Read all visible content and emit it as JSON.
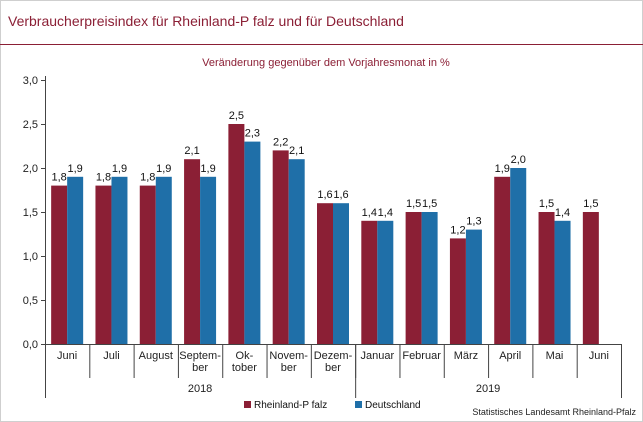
{
  "header": {
    "title": "Verbraucherpreisindex für Rheinland-P falz und für Deutschland"
  },
  "source": "Statistisches Landesamt Rheinland-Pfalz",
  "colors": {
    "rlp": "#8b1f35",
    "de": "#1f6fa8",
    "accent": "#8b1f35"
  },
  "chart_data": {
    "type": "bar",
    "subtitle": "Veränderung gegenüber dem Vorjahresmonat in %",
    "ylim": [
      0,
      3.0
    ],
    "yticks": [
      "0,0",
      "0,5",
      "1,0",
      "1,5",
      "2,0",
      "2,5",
      "3,0"
    ],
    "yticks_values": [
      0,
      0.5,
      1.0,
      1.5,
      2.0,
      2.5,
      3.0
    ],
    "categories": [
      [
        "Juni"
      ],
      [
        "Juli"
      ],
      [
        "August"
      ],
      [
        "Septem-",
        "ber"
      ],
      [
        "Ok-",
        "tober"
      ],
      [
        "Novem-",
        "ber"
      ],
      [
        "Dezem-",
        "ber"
      ],
      [
        "Januar"
      ],
      [
        "Februar"
      ],
      [
        "März"
      ],
      [
        "April"
      ],
      [
        "Mai"
      ],
      [
        "Juni"
      ]
    ],
    "years": [
      {
        "label": "2018",
        "from": 0,
        "to": 6
      },
      {
        "label": "2019",
        "from": 7,
        "to": 12
      }
    ],
    "series": [
      {
        "name": "Rheinland-Pfalz",
        "color": "#8b1f35",
        "values": [
          1.8,
          1.8,
          1.8,
          2.1,
          2.5,
          2.2,
          1.6,
          1.4,
          1.5,
          1.2,
          1.9,
          1.5,
          1.5
        ],
        "labels": [
          "1,8",
          "1,8",
          "1,8",
          "2,1",
          "2,5",
          "2,2",
          "1,6",
          "1,4",
          "1,5",
          "1,2",
          "1,9",
          "1,5",
          "1,5"
        ]
      },
      {
        "name": "Deutschland",
        "color": "#1f6fa8",
        "values": [
          1.9,
          1.9,
          1.9,
          1.9,
          2.3,
          2.1,
          1.6,
          1.4,
          1.5,
          1.3,
          2.0,
          1.4,
          null
        ],
        "labels": [
          "1,9",
          "1,9",
          "1,9",
          "1,9",
          "2,3",
          "2,1",
          "1,6",
          "1,4",
          "1,5",
          "1,3",
          "2,0",
          "1,4",
          null
        ]
      }
    ],
    "legend": {
      "placement": "bottom-center",
      "entries": [
        "Rheinland-P falz",
        "Deutschland"
      ]
    },
    "grid": false
  }
}
